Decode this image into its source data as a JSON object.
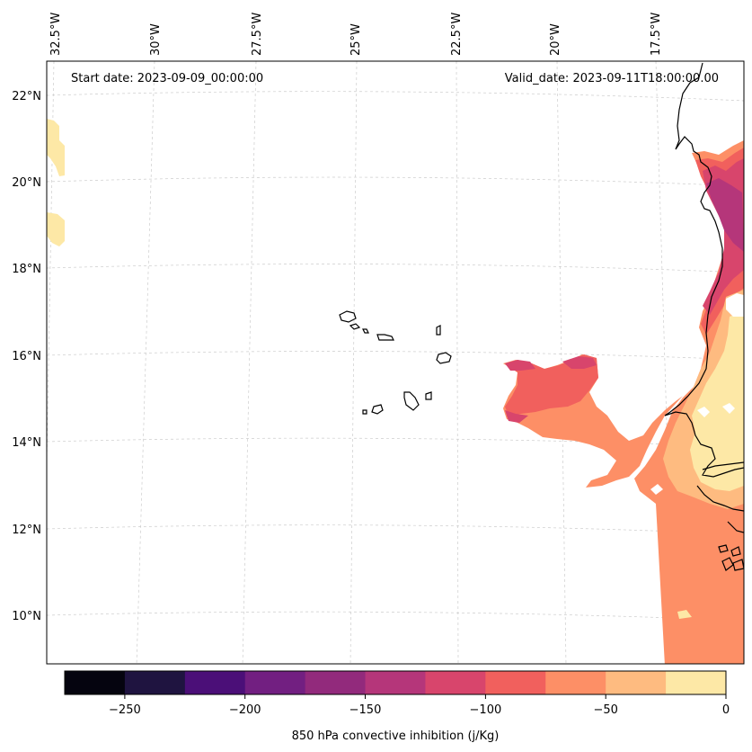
{
  "map": {
    "start_date": "Start date: 2023-09-09_00:00:00",
    "valid_date": "Valid_date: 2023-09-11T18:00:00.00",
    "longitude_ticks": [
      "32.5°W",
      "30°W",
      "27.5°W",
      "25°W",
      "22.5°W",
      "20°W",
      "17.5°W"
    ],
    "latitude_ticks": [
      "22°N",
      "20°N",
      "18°N",
      "16°N",
      "14°N",
      "12°N",
      "10°N"
    ],
    "region": "Cabo Verde and West African coast"
  },
  "colorbar": {
    "title": "850 hPa convective inhibition (j/Kg)",
    "tick_labels": [
      "−250",
      "−200",
      "−150",
      "−100",
      "−50",
      "0"
    ],
    "range": [
      -275,
      0
    ],
    "step": 25,
    "colors": [
      "#05040f",
      "#1f1440",
      "#4b0f78",
      "#721f81",
      "#922a7c",
      "#b5367a",
      "#d8456c",
      "#f1605d",
      "#fd8f66",
      "#febb80",
      "#fde8a6"
    ]
  }
}
